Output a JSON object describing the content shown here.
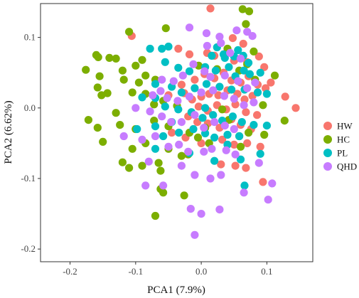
{
  "chart_data": {
    "type": "scatter",
    "xlabel": "PCA1 (7.9%)",
    "ylabel": "PCA2 (6.62%)",
    "xlim": [
      -0.245,
      0.17
    ],
    "ylim": [
      -0.218,
      0.148
    ],
    "x_ticks": [
      -0.2,
      -0.1,
      0.0,
      0.1
    ],
    "x_tick_labels": [
      "-0.2",
      "-0.1",
      "0.0",
      "0.1"
    ],
    "y_ticks": [
      -0.2,
      -0.1,
      0.0,
      0.1
    ],
    "y_tick_labels": [
      "-0.2",
      "-0.1",
      "0.0",
      "0.1"
    ],
    "grid": false,
    "legend_position": "right",
    "series": [
      {
        "name": "HW",
        "color": "#F8766D",
        "points": [
          [
            0.014,
            0.141
          ],
          [
            -0.106,
            0.102
          ],
          [
            -0.035,
            0.084
          ],
          [
            -0.018,
            0.076
          ],
          [
            0.009,
            0.078
          ],
          [
            0.02,
            0.074
          ],
          [
            0.04,
            0.081
          ],
          [
            0.048,
            0.099
          ],
          [
            0.064,
            0.091
          ],
          [
            0.05,
            0.067
          ],
          [
            0.07,
            0.065
          ],
          [
            0.088,
            0.073
          ],
          [
            0.096,
            0.058
          ],
          [
            -0.03,
            0.033
          ],
          [
            -0.01,
            0.04
          ],
          [
            0.005,
            0.048
          ],
          [
            0.02,
            0.042
          ],
          [
            0.034,
            0.05
          ],
          [
            0.046,
            0.039
          ],
          [
            0.06,
            0.036
          ],
          [
            0.072,
            0.045
          ],
          [
            0.086,
            0.033
          ],
          [
            0.098,
            0.028
          ],
          [
            0.106,
            0.036
          ],
          [
            -0.05,
            0.018
          ],
          [
            -0.026,
            0.021
          ],
          [
            -0.014,
            0.012
          ],
          [
            0.0,
            0.016
          ],
          [
            0.012,
            0.02
          ],
          [
            0.026,
            0.018
          ],
          [
            0.04,
            0.025
          ],
          [
            0.055,
            0.02
          ],
          [
            0.066,
            0.012
          ],
          [
            0.078,
            0.017
          ],
          [
            0.128,
            0.016
          ],
          [
            0.144,
            0.0
          ],
          [
            -0.004,
            0.002
          ],
          [
            0.01,
            -0.004
          ],
          [
            0.024,
            0.004
          ],
          [
            0.038,
            -0.002
          ],
          [
            0.052,
            0.005
          ],
          [
            0.068,
            -0.006
          ],
          [
            0.085,
            -0.01
          ],
          [
            -0.02,
            -0.012
          ],
          [
            -0.006,
            -0.02
          ],
          [
            0.01,
            -0.022
          ],
          [
            0.028,
            -0.028
          ],
          [
            0.046,
            -0.016
          ],
          [
            0.06,
            -0.024
          ],
          [
            0.076,
            -0.03
          ],
          [
            -0.045,
            -0.035
          ],
          [
            -0.024,
            -0.042
          ],
          [
            0.0,
            -0.05
          ],
          [
            0.032,
            -0.045
          ],
          [
            0.05,
            -0.052
          ],
          [
            0.07,
            -0.05
          ],
          [
            0.09,
            -0.055
          ],
          [
            0.03,
            -0.08
          ],
          [
            0.052,
            -0.082
          ],
          [
            0.068,
            -0.085
          ],
          [
            0.094,
            -0.105
          ]
        ]
      },
      {
        "name": "HC",
        "color": "#7CAE00",
        "points": [
          [
            -0.054,
            0.113
          ],
          [
            -0.11,
            0.108
          ],
          [
            -0.16,
            0.075
          ],
          [
            -0.157,
            0.072
          ],
          [
            -0.14,
            0.071
          ],
          [
            -0.13,
            0.07
          ],
          [
            -0.176,
            0.054
          ],
          [
            -0.12,
            0.053
          ],
          [
            -0.09,
            0.068
          ],
          [
            -0.1,
            0.06
          ],
          [
            -0.085,
            0.046
          ],
          [
            -0.095,
            0.036
          ],
          [
            -0.155,
            0.045
          ],
          [
            -0.158,
            0.029
          ],
          [
            -0.152,
            0.018
          ],
          [
            -0.143,
            0.021
          ],
          [
            -0.118,
            0.04
          ],
          [
            -0.07,
            0.04
          ],
          [
            -0.105,
            0.022
          ],
          [
            -0.085,
            0.02
          ],
          [
            -0.072,
            0.005
          ],
          [
            -0.058,
            0.01
          ],
          [
            -0.037,
            0.003
          ],
          [
            -0.13,
            -0.007
          ],
          [
            -0.124,
            -0.024
          ],
          [
            -0.1,
            -0.03
          ],
          [
            -0.072,
            -0.018
          ],
          [
            -0.05,
            -0.026
          ],
          [
            -0.158,
            -0.028
          ],
          [
            -0.172,
            -0.017
          ],
          [
            -0.15,
            -0.048
          ],
          [
            -0.105,
            -0.058
          ],
          [
            -0.085,
            -0.05
          ],
          [
            -0.05,
            -0.058
          ],
          [
            -0.018,
            -0.035
          ],
          [
            -0.005,
            -0.042
          ],
          [
            0.006,
            -0.028
          ],
          [
            0.012,
            -0.05
          ],
          [
            -0.03,
            -0.068
          ],
          [
            -0.02,
            -0.066
          ],
          [
            -0.12,
            -0.077
          ],
          [
            -0.09,
            -0.082
          ],
          [
            -0.065,
            -0.078
          ],
          [
            -0.062,
            -0.089
          ],
          [
            -0.11,
            -0.085
          ],
          [
            -0.058,
            -0.12
          ],
          [
            -0.062,
            -0.115
          ],
          [
            -0.07,
            -0.153
          ],
          [
            -0.026,
            -0.124
          ],
          [
            0.063,
            0.14
          ],
          [
            0.073,
            0.137
          ],
          [
            0.08,
            0.08
          ],
          [
            0.07,
            0.062
          ],
          [
            0.058,
            0.053
          ],
          [
            0.094,
            0.004
          ],
          [
            0.127,
            -0.018
          ],
          [
            0.04,
            0.084
          ],
          [
            0.06,
            -0.055
          ],
          [
            -0.004,
            0.06
          ],
          [
            0.082,
            0.04
          ],
          [
            0.068,
            0.119
          ],
          [
            0.024,
            0.055
          ],
          [
            0.112,
            0.046
          ],
          [
            0.032,
            -0.002
          ],
          [
            0.042,
            -0.017
          ],
          [
            0.072,
            -0.035
          ],
          [
            0.058,
            -0.04
          ],
          [
            0.096,
            -0.038
          ]
        ]
      },
      {
        "name": "PL",
        "color": "#00BFC4",
        "points": [
          [
            0.024,
            0.086
          ],
          [
            0.034,
            0.076
          ],
          [
            -0.078,
            0.084
          ],
          [
            -0.06,
            0.084
          ],
          [
            -0.05,
            0.087
          ],
          [
            0.016,
            0.074
          ],
          [
            0.036,
            0.071
          ],
          [
            0.05,
            0.073
          ],
          [
            0.056,
            0.082
          ],
          [
            0.064,
            0.074
          ],
          [
            0.072,
            0.064
          ],
          [
            -0.055,
            0.065
          ],
          [
            -0.035,
            0.057
          ],
          [
            -0.018,
            0.052
          ],
          [
            0.006,
            0.058
          ],
          [
            0.022,
            0.053
          ],
          [
            0.042,
            0.058
          ],
          [
            0.052,
            0.045
          ],
          [
            0.065,
            0.053
          ],
          [
            0.074,
            0.048
          ],
          [
            0.09,
            0.05
          ],
          [
            -0.07,
            0.034
          ],
          [
            -0.045,
            0.03
          ],
          [
            -0.03,
            0.022
          ],
          [
            -0.01,
            0.028
          ],
          [
            0.008,
            0.034
          ],
          [
            0.028,
            0.03
          ],
          [
            0.046,
            0.026
          ],
          [
            0.066,
            0.026
          ],
          [
            0.086,
            0.022
          ],
          [
            0.1,
            0.02
          ],
          [
            -0.09,
            0.015
          ],
          [
            -0.07,
            0.014
          ],
          [
            -0.055,
            0.002
          ],
          [
            -0.035,
            -0.002
          ],
          [
            -0.015,
            -0.006
          ],
          [
            0.002,
            -0.014
          ],
          [
            0.018,
            -0.01
          ],
          [
            0.032,
            -0.018
          ],
          [
            0.048,
            -0.012
          ],
          [
            0.062,
            -0.02
          ],
          [
            0.08,
            -0.024
          ],
          [
            0.1,
            -0.025
          ],
          [
            -0.098,
            -0.03
          ],
          [
            -0.07,
            -0.026
          ],
          [
            -0.058,
            -0.04
          ],
          [
            -0.034,
            -0.035
          ],
          [
            -0.012,
            -0.03
          ],
          [
            0.006,
            -0.036
          ],
          [
            0.02,
            -0.042
          ],
          [
            0.04,
            -0.038
          ],
          [
            0.058,
            -0.04
          ],
          [
            -0.07,
            -0.058
          ],
          [
            -0.018,
            -0.064
          ],
          [
            0.04,
            -0.052
          ],
          [
            0.09,
            -0.065
          ],
          [
            0.06,
            -0.073
          ],
          [
            0.02,
            -0.075
          ],
          [
            0.066,
            -0.11
          ],
          [
            -0.045,
            -0.02
          ],
          [
            0.006,
            0.0
          ]
        ]
      },
      {
        "name": "QHD",
        "color": "#C77CFF",
        "points": [
          [
            -0.018,
            0.114
          ],
          [
            0.008,
            0.106
          ],
          [
            0.028,
            0.101
          ],
          [
            0.054,
            0.11
          ],
          [
            0.07,
            0.108
          ],
          [
            0.078,
            0.102
          ],
          [
            0.009,
            0.088
          ],
          [
            0.03,
            0.092
          ],
          [
            0.044,
            0.078
          ],
          [
            0.06,
            0.07
          ],
          [
            -0.012,
            0.062
          ],
          [
            0.005,
            0.052
          ],
          [
            0.014,
            0.044
          ],
          [
            0.036,
            0.046
          ],
          [
            0.056,
            0.038
          ],
          [
            0.07,
            0.028
          ],
          [
            0.082,
            0.036
          ],
          [
            -0.06,
            0.04
          ],
          [
            -0.042,
            0.038
          ],
          [
            -0.028,
            0.046
          ],
          [
            -0.074,
            0.018
          ],
          [
            -0.062,
            0.024
          ],
          [
            -0.052,
            0.014
          ],
          [
            -0.036,
            0.01
          ],
          [
            -0.018,
            0.016
          ],
          [
            0.0,
            0.022
          ],
          [
            0.018,
            0.025
          ],
          [
            0.035,
            0.017
          ],
          [
            0.05,
            0.013
          ],
          [
            0.065,
            0.004
          ],
          [
            0.08,
            0.008
          ],
          [
            -0.1,
            0.0
          ],
          [
            -0.078,
            -0.005
          ],
          [
            -0.06,
            -0.012
          ],
          [
            -0.046,
            -0.02
          ],
          [
            -0.03,
            -0.02
          ],
          [
            -0.01,
            -0.01
          ],
          [
            0.004,
            -0.028
          ],
          [
            0.02,
            -0.02
          ],
          [
            0.036,
            -0.025
          ],
          [
            0.05,
            -0.03
          ],
          [
            -0.118,
            -0.04
          ],
          [
            -0.09,
            -0.045
          ],
          [
            -0.07,
            -0.04
          ],
          [
            -0.05,
            -0.055
          ],
          [
            -0.034,
            -0.052
          ],
          [
            -0.02,
            -0.062
          ],
          [
            0.004,
            -0.062
          ],
          [
            0.016,
            -0.058
          ],
          [
            0.038,
            -0.06
          ],
          [
            0.052,
            -0.066
          ],
          [
            0.088,
            -0.078
          ],
          [
            -0.085,
            -0.11
          ],
          [
            -0.058,
            -0.11
          ],
          [
            -0.03,
            -0.082
          ],
          [
            -0.01,
            -0.095
          ],
          [
            0.014,
            -0.1
          ],
          [
            0.03,
            -0.095
          ],
          [
            0.108,
            -0.107
          ],
          [
            0.102,
            -0.13
          ],
          [
            -0.016,
            -0.143
          ],
          [
            0.0,
            -0.15
          ],
          [
            0.028,
            -0.144
          ],
          [
            -0.01,
            -0.18
          ],
          [
            0.065,
            -0.12
          ],
          [
            -0.08,
            -0.076
          ]
        ]
      }
    ]
  }
}
